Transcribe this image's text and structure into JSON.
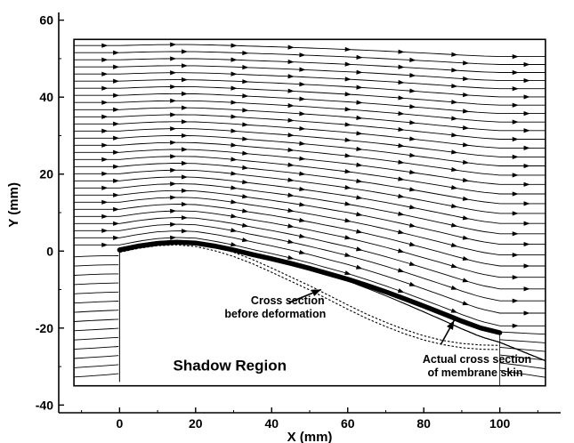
{
  "chart_data": {
    "type": "streamline",
    "xlabel": "X (mm)",
    "ylabel": "Y (mm)",
    "xlim": [
      -16,
      116
    ],
    "ylim": [
      -42,
      62
    ],
    "x_ticks": [
      0,
      20,
      40,
      60,
      80,
      100
    ],
    "y_ticks": [
      60,
      40,
      20,
      0,
      -20,
      -40
    ],
    "grid": false,
    "measurement_window": {
      "x": [
        -12,
        112
      ],
      "y": [
        -35,
        55
      ]
    },
    "shadow_region": {
      "x": [
        0,
        100
      ],
      "y": [
        -35,
        0
      ]
    },
    "membrane_actual": {
      "x": [
        0,
        5,
        10,
        15,
        20,
        25,
        30,
        35,
        40,
        45,
        50,
        55,
        60,
        65,
        70,
        75,
        80,
        85,
        90,
        95,
        100
      ],
      "y": [
        0.3,
        1.3,
        2.0,
        2.3,
        2.1,
        1.3,
        0.3,
        -0.9,
        -2.0,
        -3.2,
        -4.5,
        -5.9,
        -7.3,
        -8.9,
        -10.6,
        -12.4,
        -14.3,
        -16.2,
        -18.2,
        -20.0,
        -21.2
      ]
    },
    "membrane_before": {
      "x": [
        0,
        5,
        10,
        15,
        20,
        25,
        30,
        35,
        40,
        45,
        50,
        55,
        60,
        65,
        70,
        75,
        80,
        85,
        90,
        95,
        100
      ],
      "y": [
        0.3,
        1.3,
        2.0,
        2.2,
        1.8,
        0.7,
        -0.8,
        -2.7,
        -4.9,
        -7.2,
        -9.5,
        -12.0,
        -14.5,
        -16.9,
        -19.0,
        -20.9,
        -22.5,
        -23.7,
        -24.5,
        -24.9,
        -25.0
      ]
    },
    "annotations": {
      "before": {
        "lines": [
          "Cross section",
          "before deformation"
        ],
        "x": 40,
        "y": -13.8,
        "arrow_to": [
          53,
          -10
        ]
      },
      "actual": {
        "lines": [
          "Actual cross section",
          "of membrane skin"
        ],
        "x": 94,
        "y": -29,
        "arrow_to": [
          88,
          -18
        ]
      },
      "shadow": "Shadow Region"
    }
  }
}
